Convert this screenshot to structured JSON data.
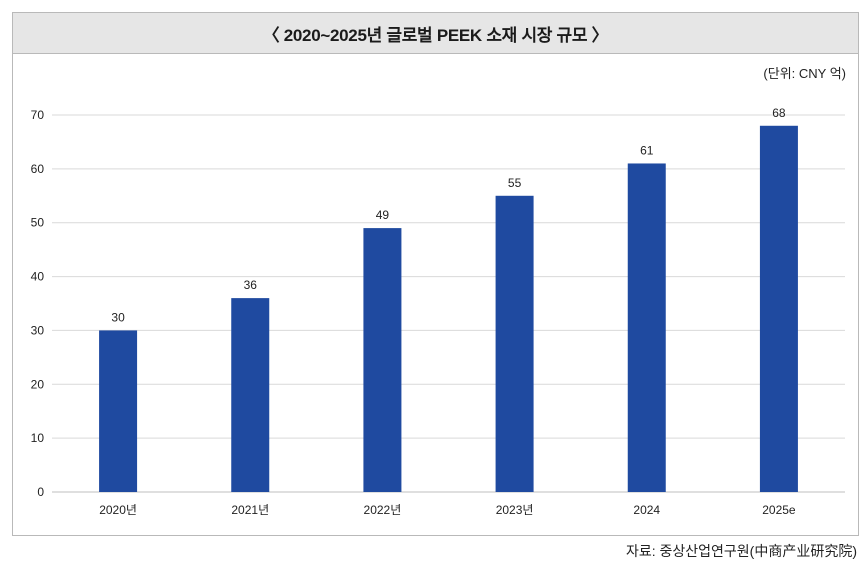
{
  "title": "〈 2020~2025년 글로벌 PEEK 소재 시장 규모 〉",
  "unit": "(단위: CNY 억)",
  "source": "자료: 중상산업연구원(中商产业研究院)",
  "colors": {
    "bar": "#1f4aa0",
    "grid": "#d9d9d9",
    "title_bg": "#e6e6e6"
  },
  "chart_data": {
    "type": "bar",
    "categories": [
      "2020년",
      "2021년",
      "2022년",
      "2023년",
      "2024",
      "2025e"
    ],
    "values": [
      30,
      36,
      49,
      55,
      61,
      68
    ],
    "yticks": [
      0,
      10,
      20,
      30,
      40,
      50,
      60,
      70
    ],
    "ylim": [
      0,
      70
    ],
    "grid": true,
    "xlabel": "",
    "ylabel": ""
  }
}
